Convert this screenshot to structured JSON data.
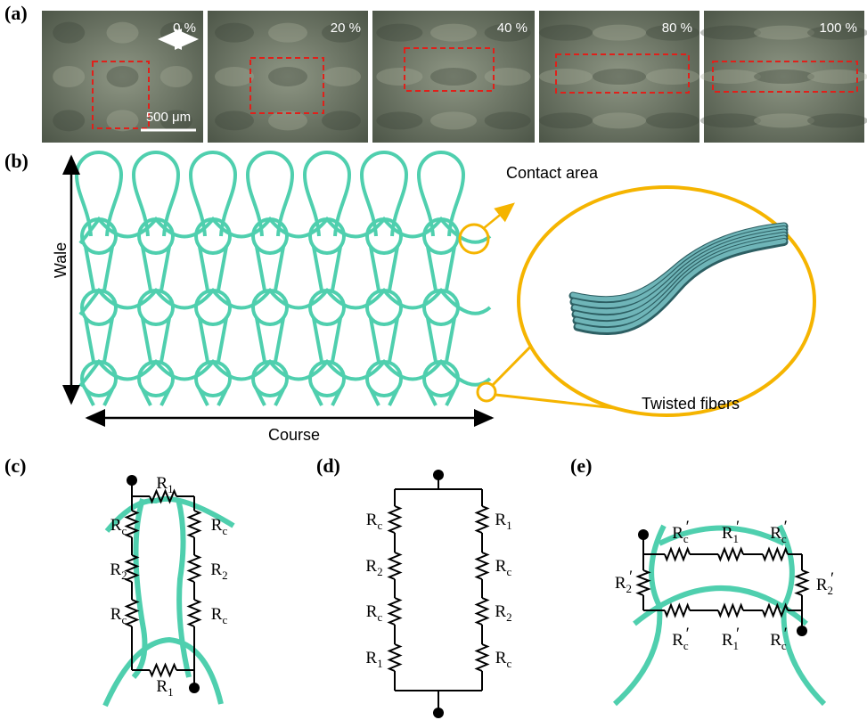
{
  "panels": {
    "a": {
      "label": "(a)",
      "strains": [
        "0 %",
        "20 %",
        "40 %",
        "80 %",
        "100 %"
      ],
      "scale_bar": "500 μm"
    },
    "b": {
      "label": "(b)",
      "wale": "Wale",
      "course": "Course",
      "contact_area": "Contact area",
      "twisted_fibers": "Twisted fibers"
    },
    "c": {
      "label": "(c)",
      "resistors": [
        {
          "symbol": "R",
          "sub": "1"
        },
        {
          "symbol": "R",
          "sub": "c"
        },
        {
          "symbol": "R",
          "sub": "c"
        },
        {
          "symbol": "R",
          "sub": "2"
        },
        {
          "symbol": "R",
          "sub": "2"
        },
        {
          "symbol": "R",
          "sub": "c"
        },
        {
          "symbol": "R",
          "sub": "c"
        },
        {
          "symbol": "R",
          "sub": "1"
        }
      ]
    },
    "d": {
      "label": "(d)",
      "resistors": [
        {
          "symbol": "R",
          "sub": "c"
        },
        {
          "symbol": "R",
          "sub": "2"
        },
        {
          "symbol": "R",
          "sub": "c"
        },
        {
          "symbol": "R",
          "sub": "1"
        },
        {
          "symbol": "R",
          "sub": "1"
        },
        {
          "symbol": "R",
          "sub": "c"
        },
        {
          "symbol": "R",
          "sub": "2"
        },
        {
          "symbol": "R",
          "sub": "c"
        }
      ]
    },
    "e": {
      "label": "(e)",
      "resistors": [
        {
          "symbol": "R",
          "sub": "c",
          "prime": "′"
        },
        {
          "symbol": "R",
          "sub": "1",
          "prime": "′"
        },
        {
          "symbol": "R",
          "sub": "c",
          "prime": "′"
        },
        {
          "symbol": "R",
          "sub": "2",
          "prime": "′"
        },
        {
          "symbol": "R",
          "sub": "2",
          "prime": "′"
        },
        {
          "symbol": "R",
          "sub": "c",
          "prime": "′"
        },
        {
          "symbol": "R",
          "sub": "1",
          "prime": "′"
        },
        {
          "symbol": "R",
          "sub": "c",
          "prime": "′"
        }
      ]
    }
  }
}
